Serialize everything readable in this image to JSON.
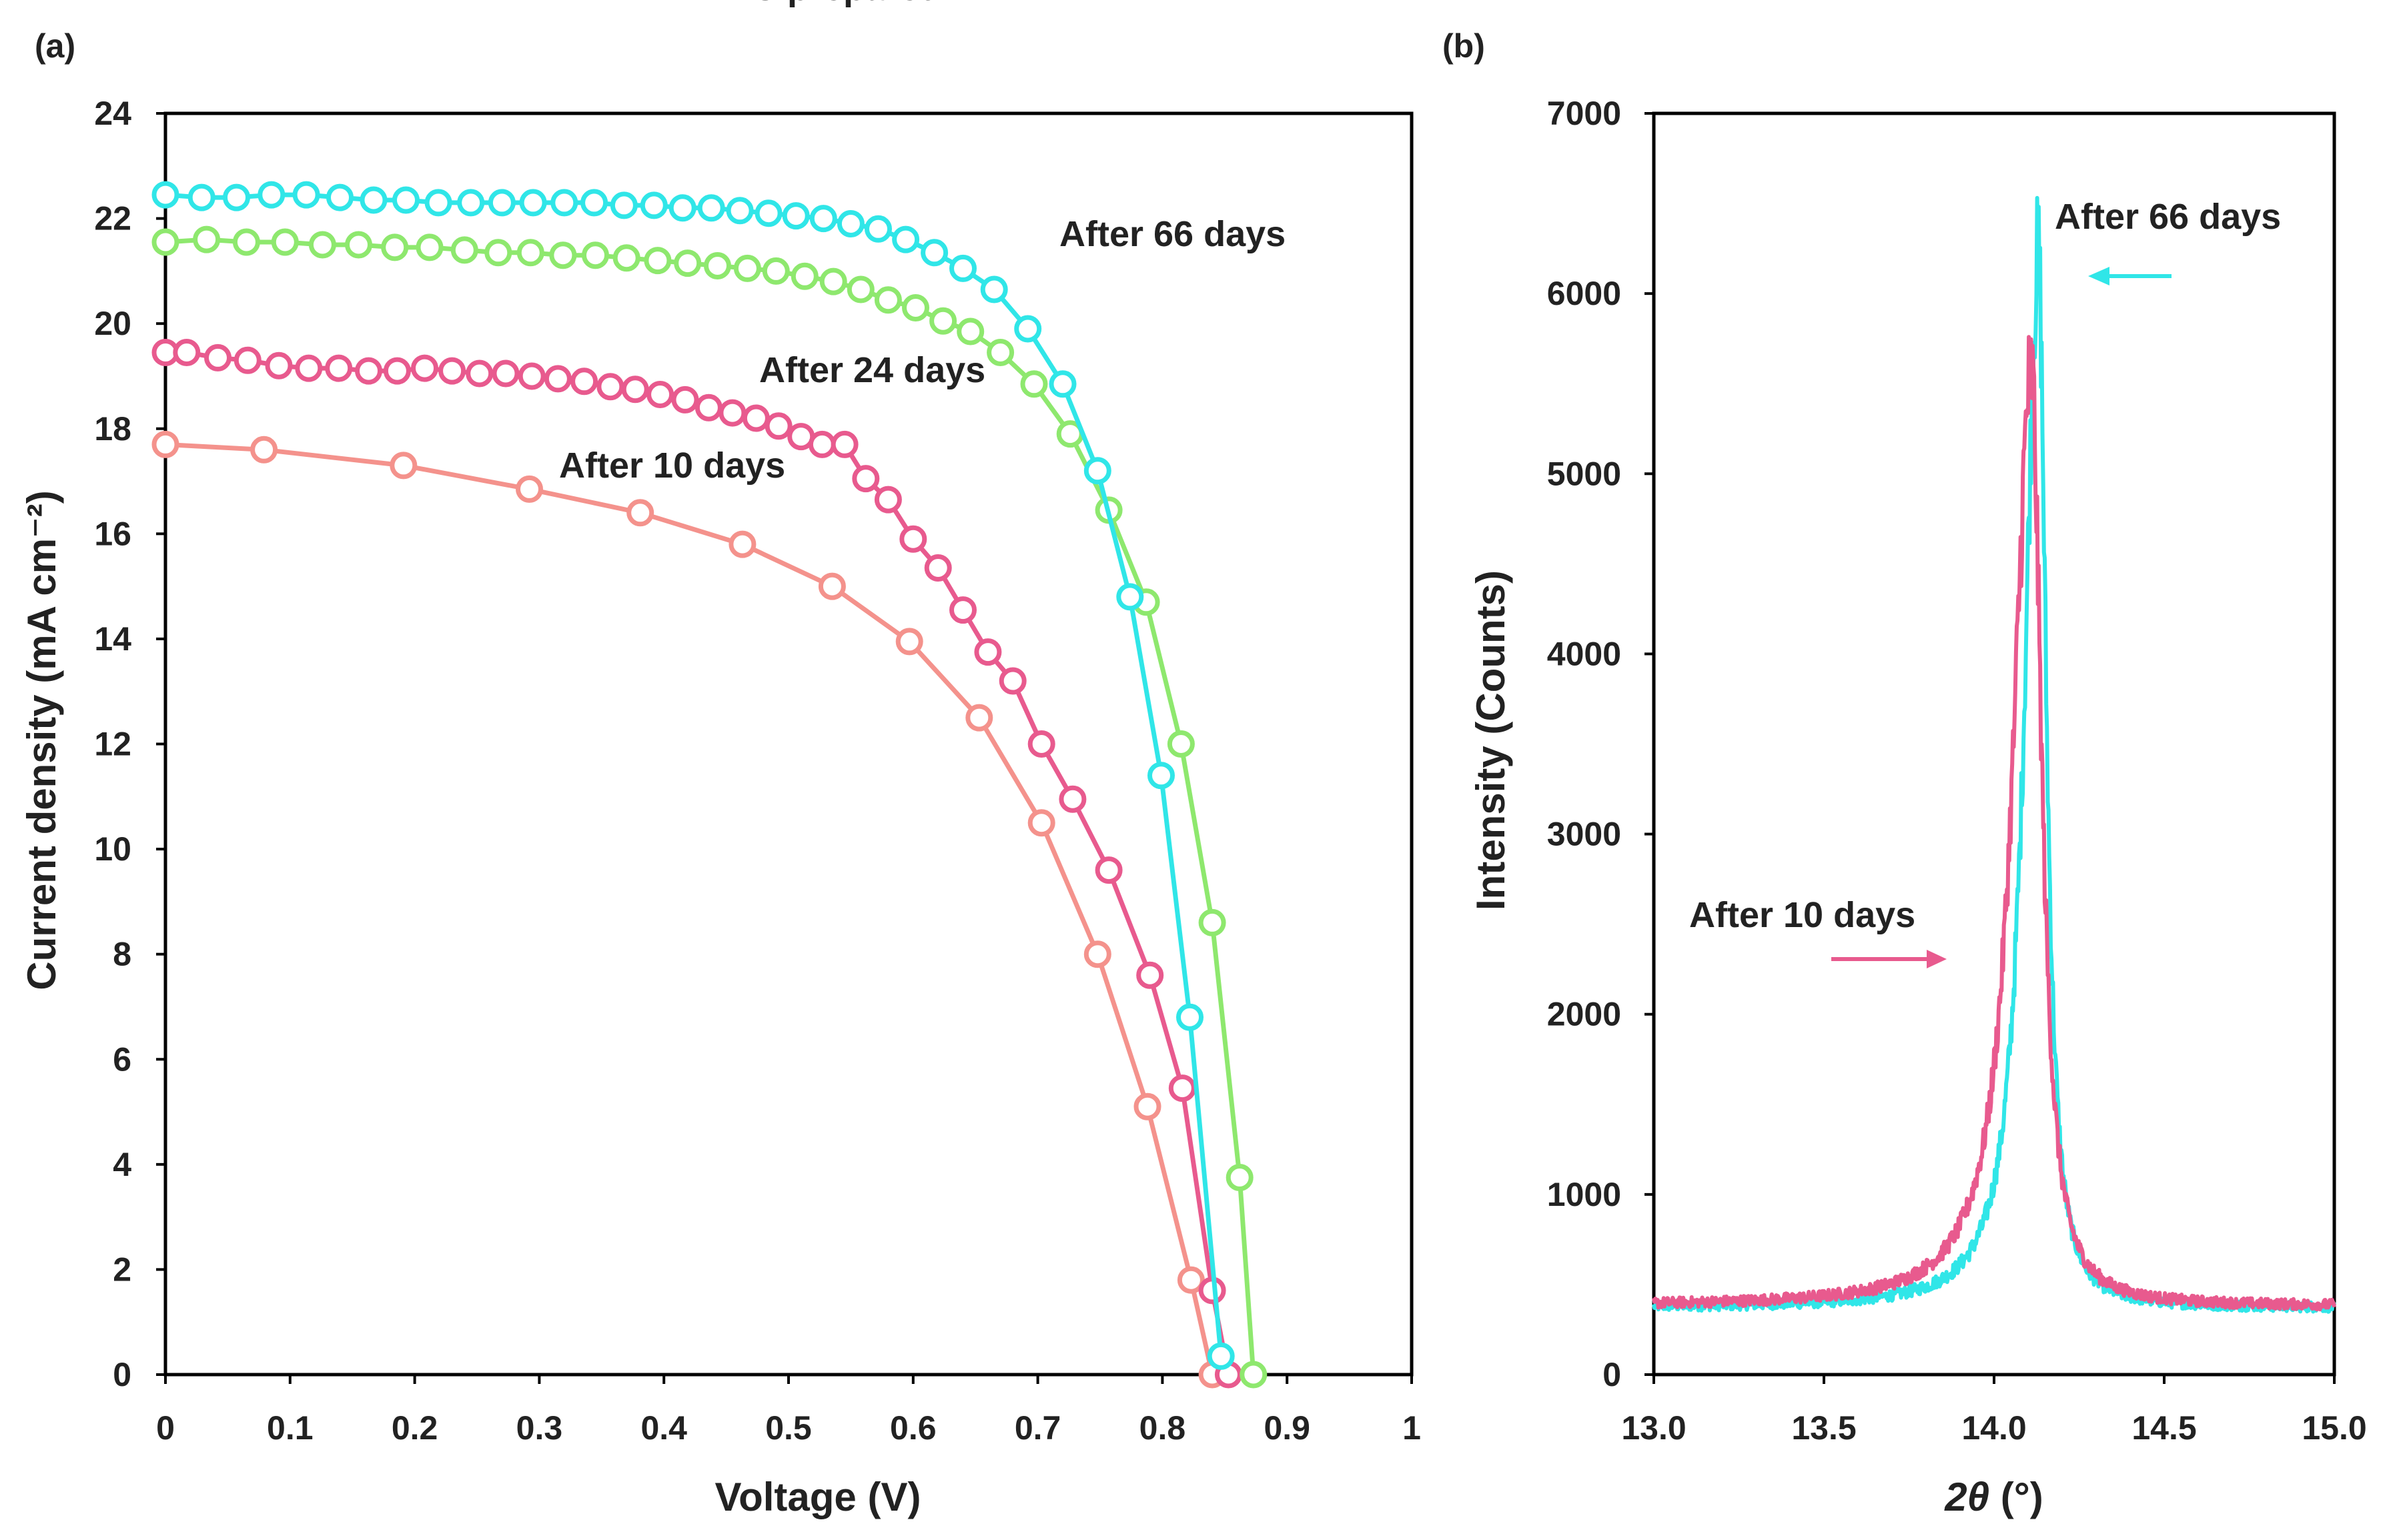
{
  "chart_data": [
    {
      "panel": "(a)",
      "type": "line",
      "xlabel": "Voltage (V)",
      "ylabel": "Current density (mA cm⁻²)",
      "xlim": [
        0,
        1
      ],
      "ylim": [
        0,
        24
      ],
      "xticks": [
        "0",
        "0.1",
        "0.2",
        "0.3",
        "0.4",
        "0.5",
        "0.6",
        "0.7",
        "0.8",
        "0.9",
        "1"
      ],
      "yticks": [
        "0",
        "2",
        "4",
        "6",
        "8",
        "10",
        "12",
        "14",
        "16",
        "18",
        "20",
        "22",
        "24"
      ],
      "series": [
        {
          "name": "As-prepared",
          "color": "#f4928c",
          "points": [
            [
              0.0,
              17.7
            ],
            [
              0.079,
              17.6
            ],
            [
              0.191,
              17.3
            ],
            [
              0.292,
              16.85
            ],
            [
              0.381,
              16.4
            ],
            [
              0.463,
              15.8
            ],
            [
              0.535,
              15.0
            ],
            [
              0.597,
              13.95
            ],
            [
              0.653,
              12.5
            ],
            [
              0.703,
              10.5
            ],
            [
              0.748,
              8.0
            ],
            [
              0.788,
              5.1
            ],
            [
              0.823,
              1.8
            ],
            [
              0.84,
              0.0
            ]
          ]
        },
        {
          "name": "After 10 days",
          "color": "#e85a8e",
          "points": [
            [
              0.0,
              19.45
            ],
            [
              0.017,
              19.45
            ],
            [
              0.042,
              19.35
            ],
            [
              0.066,
              19.3
            ],
            [
              0.091,
              19.2
            ],
            [
              0.115,
              19.15
            ],
            [
              0.139,
              19.15
            ],
            [
              0.163,
              19.1
            ],
            [
              0.186,
              19.1
            ],
            [
              0.208,
              19.15
            ],
            [
              0.23,
              19.1
            ],
            [
              0.252,
              19.05
            ],
            [
              0.273,
              19.05
            ],
            [
              0.294,
              19.0
            ],
            [
              0.315,
              18.95
            ],
            [
              0.336,
              18.9
            ],
            [
              0.357,
              18.8
            ],
            [
              0.377,
              18.75
            ],
            [
              0.397,
              18.65
            ],
            [
              0.417,
              18.55
            ],
            [
              0.436,
              18.4
            ],
            [
              0.455,
              18.3
            ],
            [
              0.474,
              18.2
            ],
            [
              0.492,
              18.05
            ],
            [
              0.51,
              17.85
            ],
            [
              0.527,
              17.7
            ],
            [
              0.545,
              17.7
            ],
            [
              0.562,
              17.05
            ],
            [
              0.58,
              16.65
            ],
            [
              0.6,
              15.9
            ],
            [
              0.62,
              15.35
            ],
            [
              0.64,
              14.55
            ],
            [
              0.66,
              13.75
            ],
            [
              0.68,
              13.2
            ],
            [
              0.703,
              12.0
            ],
            [
              0.728,
              10.95
            ],
            [
              0.757,
              9.6
            ],
            [
              0.79,
              7.6
            ],
            [
              0.816,
              5.45
            ],
            [
              0.84,
              1.6
            ],
            [
              0.853,
              0.0
            ]
          ]
        },
        {
          "name": "After 24 days",
          "color": "#8ee86e",
          "points": [
            [
              0.0,
              21.55
            ],
            [
              0.033,
              21.6
            ],
            [
              0.065,
              21.55
            ],
            [
              0.096,
              21.55
            ],
            [
              0.126,
              21.5
            ],
            [
              0.155,
              21.5
            ],
            [
              0.184,
              21.45
            ],
            [
              0.212,
              21.45
            ],
            [
              0.24,
              21.4
            ],
            [
              0.267,
              21.35
            ],
            [
              0.293,
              21.35
            ],
            [
              0.319,
              21.3
            ],
            [
              0.345,
              21.3
            ],
            [
              0.37,
              21.25
            ],
            [
              0.395,
              21.2
            ],
            [
              0.419,
              21.15
            ],
            [
              0.443,
              21.1
            ],
            [
              0.467,
              21.05
            ],
            [
              0.49,
              21.0
            ],
            [
              0.513,
              20.9
            ],
            [
              0.536,
              20.8
            ],
            [
              0.558,
              20.65
            ],
            [
              0.58,
              20.45
            ],
            [
              0.602,
              20.3
            ],
            [
              0.624,
              20.05
            ],
            [
              0.646,
              19.85
            ],
            [
              0.67,
              19.45
            ],
            [
              0.697,
              18.85
            ],
            [
              0.726,
              17.9
            ],
            [
              0.757,
              16.45
            ],
            [
              0.787,
              14.7
            ],
            [
              0.815,
              12.0
            ],
            [
              0.84,
              8.6
            ],
            [
              0.862,
              3.75
            ],
            [
              0.873,
              0.0
            ]
          ]
        },
        {
          "name": "After 66 days",
          "color": "#30e6e8",
          "points": [
            [
              0.0,
              22.45
            ],
            [
              0.029,
              22.4
            ],
            [
              0.057,
              22.4
            ],
            [
              0.085,
              22.45
            ],
            [
              0.113,
              22.45
            ],
            [
              0.14,
              22.4
            ],
            [
              0.167,
              22.35
            ],
            [
              0.193,
              22.35
            ],
            [
              0.219,
              22.3
            ],
            [
              0.245,
              22.3
            ],
            [
              0.27,
              22.3
            ],
            [
              0.295,
              22.3
            ],
            [
              0.32,
              22.3
            ],
            [
              0.344,
              22.3
            ],
            [
              0.368,
              22.25
            ],
            [
              0.392,
              22.25
            ],
            [
              0.415,
              22.2
            ],
            [
              0.438,
              22.2
            ],
            [
              0.461,
              22.15
            ],
            [
              0.484,
              22.1
            ],
            [
              0.506,
              22.05
            ],
            [
              0.528,
              22.0
            ],
            [
              0.55,
              21.9
            ],
            [
              0.572,
              21.8
            ],
            [
              0.594,
              21.6
            ],
            [
              0.617,
              21.35
            ],
            [
              0.64,
              21.05
            ],
            [
              0.665,
              20.65
            ],
            [
              0.692,
              19.9
            ],
            [
              0.72,
              18.85
            ],
            [
              0.748,
              17.2
            ],
            [
              0.774,
              14.8
            ],
            [
              0.799,
              11.4
            ],
            [
              0.822,
              6.8
            ],
            [
              0.847,
              0.35
            ]
          ]
        }
      ],
      "annotations": [
        "As-prepared",
        "After 10 days",
        "After 24 days",
        "After 66 days"
      ]
    },
    {
      "panel": "(b)",
      "type": "line",
      "xlabel_symbol": "2θ",
      "xlabel_unit": " (°)",
      "ylabel": "Intensity (Counts)",
      "xlim": [
        13.0,
        15.0
      ],
      "ylim": [
        0,
        7000
      ],
      "xticks": [
        "13.0",
        "13.5",
        "14.0",
        "14.5",
        "15.0"
      ],
      "yticks": [
        "0",
        "1000",
        "2000",
        "3000",
        "4000",
        "5000",
        "6000",
        "7000"
      ],
      "series": [
        {
          "name": "After 66 days",
          "color": "#30e6e8",
          "peak_center": 14.13,
          "peak_height": 6200,
          "baseline": 370,
          "hwhm_left": 0.048,
          "hwhm_right": 0.028
        },
        {
          "name": "After 10 days",
          "color": "#e85a8e",
          "peak_center": 14.11,
          "peak_height": 5560,
          "baseline": 380,
          "hwhm_left": 0.065,
          "hwhm_right": 0.036
        }
      ],
      "annotations": [
        "After 66 days",
        "After 10 days"
      ]
    }
  ]
}
